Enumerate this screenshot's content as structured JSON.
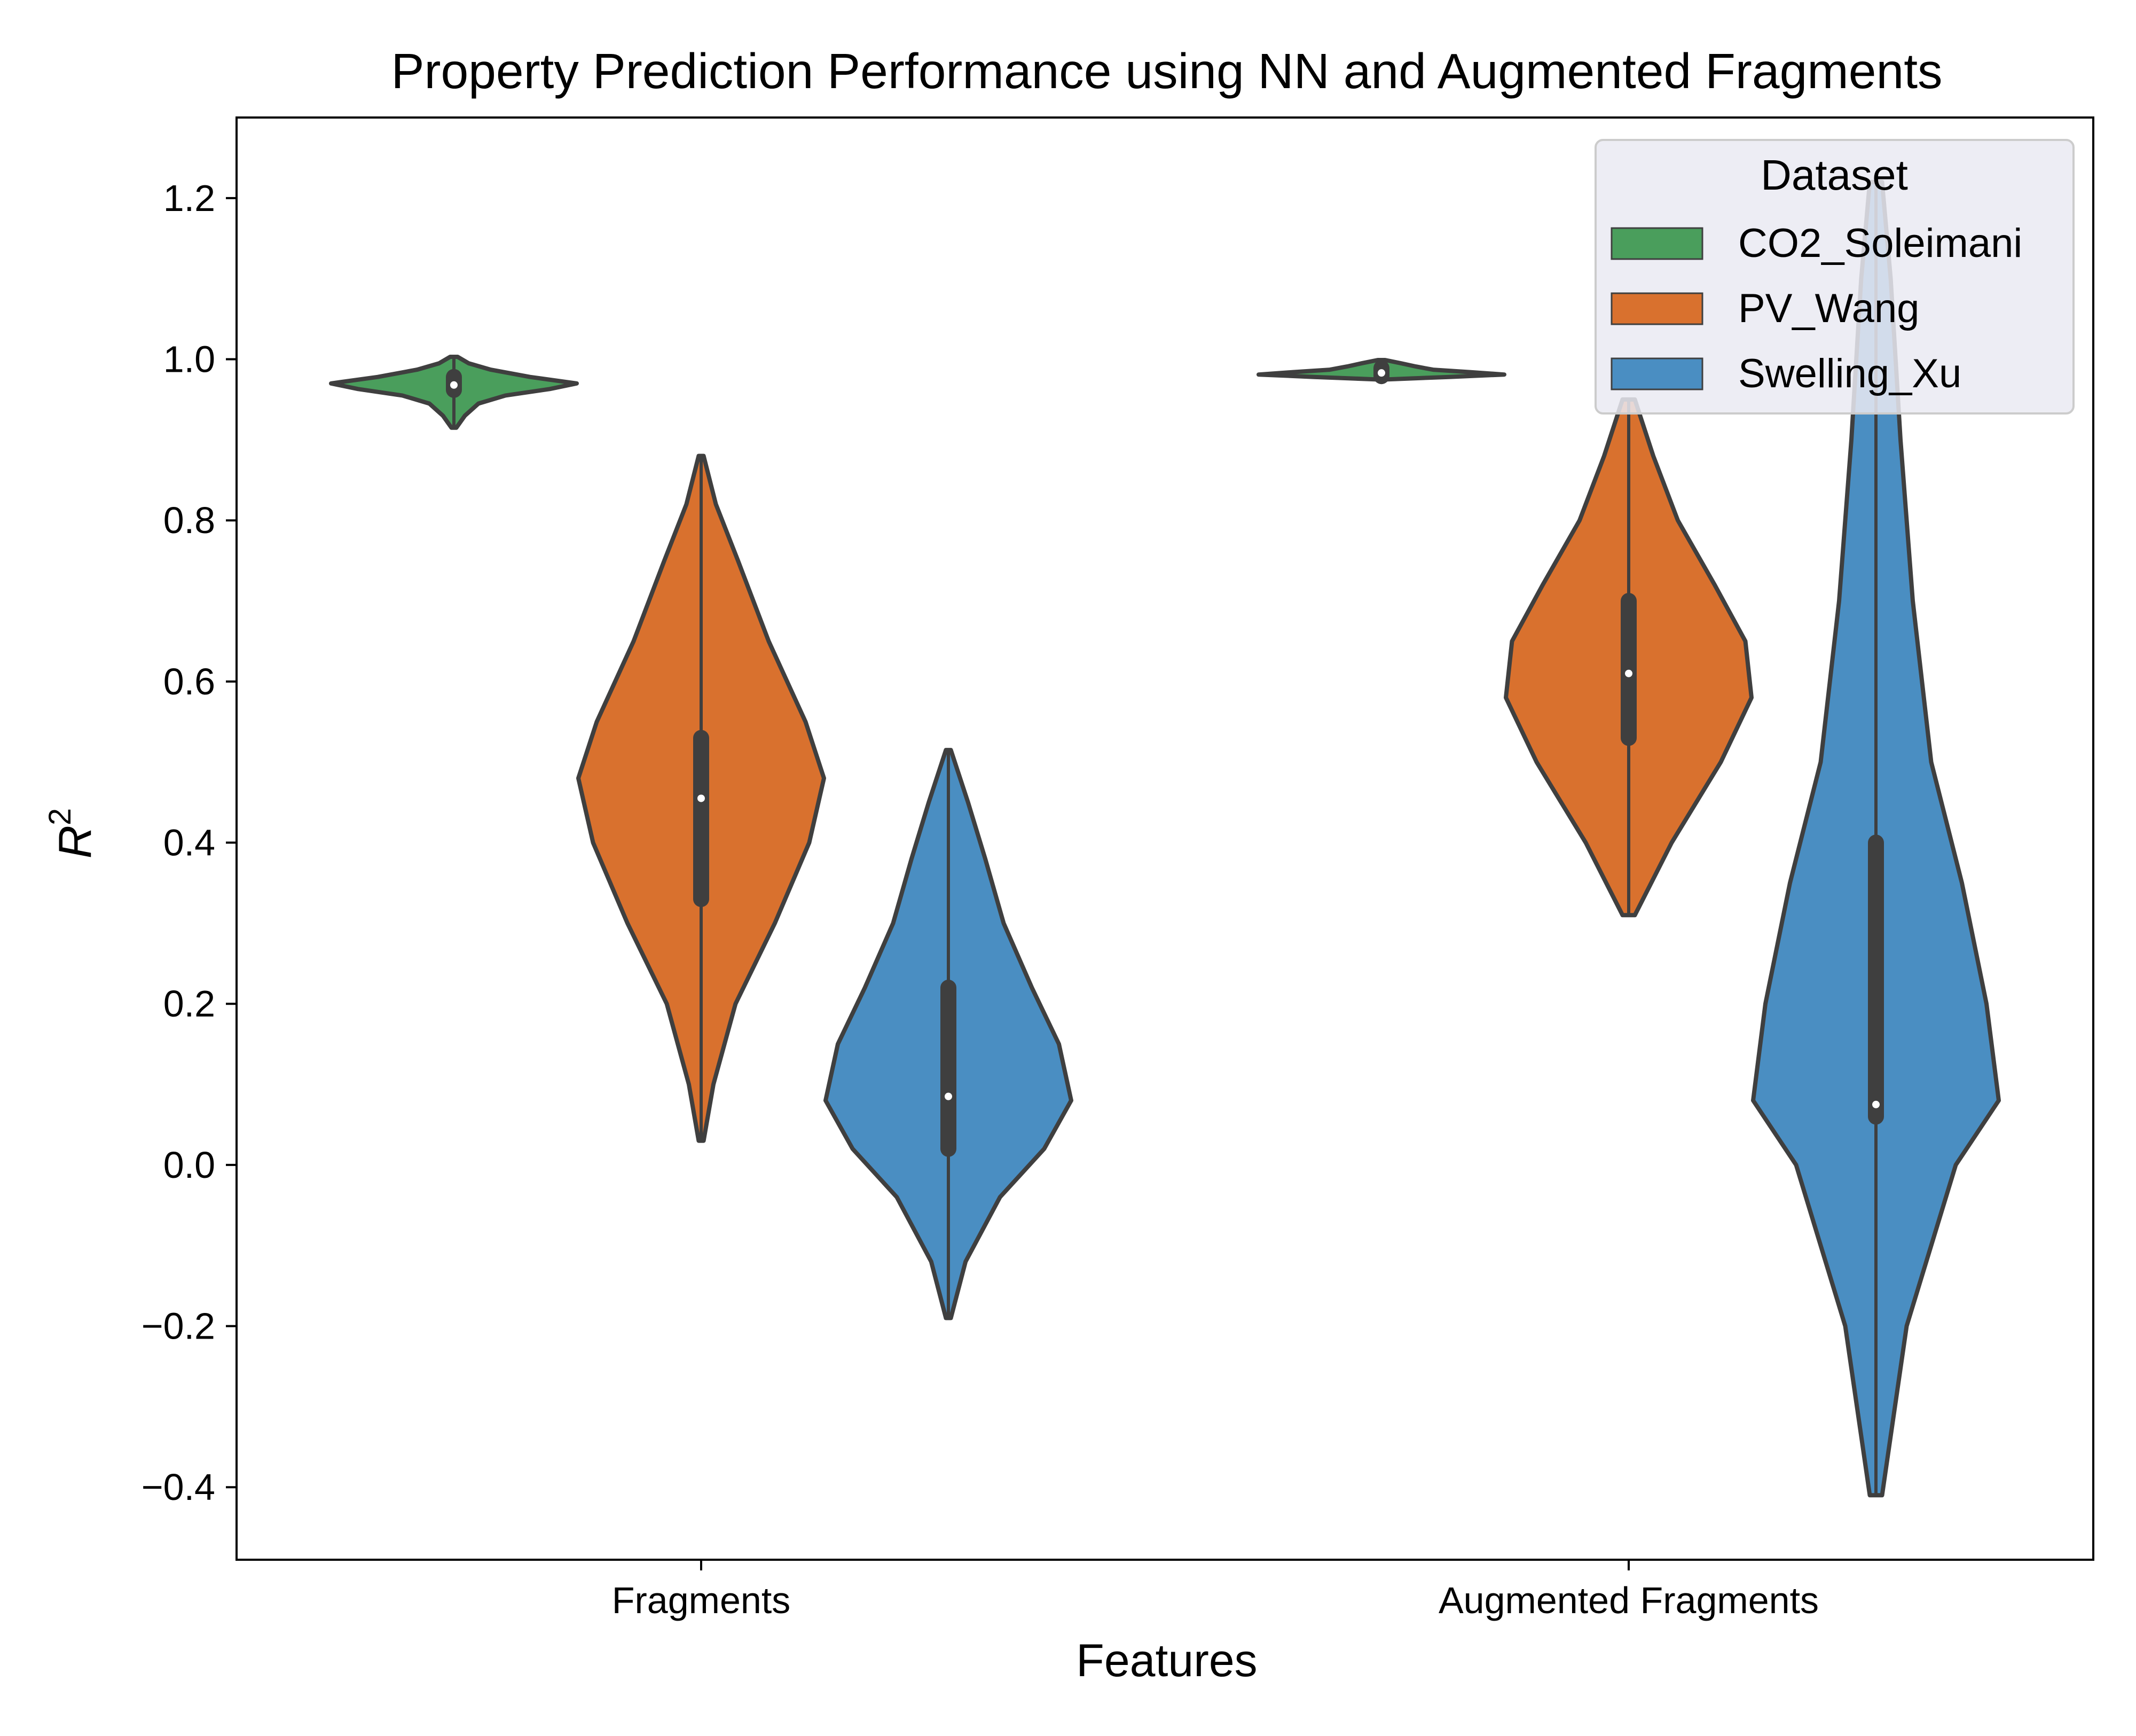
{
  "chart_data": {
    "type": "violin",
    "title": "Property Prediction Performance using NN and Augmented Fragments",
    "xlabel": "Features",
    "ylabel": "R",
    "ylabel_superscript": "2",
    "categories": [
      "Fragments",
      "Augmented Fragments"
    ],
    "ylim": [
      -0.49,
      1.3
    ],
    "yticks": [
      -0.4,
      -0.2,
      0.0,
      0.2,
      0.4,
      0.6,
      0.8,
      1.0,
      1.2
    ],
    "ytick_labels": [
      "−0.4",
      "−0.2",
      "0.0",
      "0.2",
      "0.4",
      "0.6",
      "0.8",
      "1.0",
      "1.2"
    ],
    "grid": false,
    "legend": {
      "title": "Dataset",
      "position": "top-right"
    },
    "series": [
      {
        "name": "CO2_Soleimani",
        "color": "#4a9e5c",
        "stats": [
          {
            "category": "Fragments",
            "min": 0.915,
            "q1": 0.962,
            "median": 0.968,
            "q3": 0.978,
            "max": 1.003,
            "density": [
              [
                0.915,
                0.02
              ],
              [
                0.93,
                0.09
              ],
              [
                0.945,
                0.2
              ],
              [
                0.955,
                0.42
              ],
              [
                0.963,
                0.78
              ],
              [
                0.97,
                1.0
              ],
              [
                0.978,
                0.62
              ],
              [
                0.987,
                0.3
              ],
              [
                0.995,
                0.12
              ],
              [
                1.003,
                0.03
              ]
            ]
          },
          {
            "category": "Augmented Fragments",
            "min": 0.975,
            "q1": 0.979,
            "median": 0.983,
            "q3": 0.989,
            "max": 0.999,
            "density": [
              [
                0.975,
                0.05
              ],
              [
                0.978,
                0.55
              ],
              [
                0.981,
                1.0
              ],
              [
                0.984,
                0.72
              ],
              [
                0.987,
                0.42
              ],
              [
                0.991,
                0.28
              ],
              [
                0.995,
                0.16
              ],
              [
                0.999,
                0.03
              ]
            ]
          }
        ]
      },
      {
        "name": "PV_Wang",
        "color": "#d9712e",
        "stats": [
          {
            "category": "Fragments",
            "min": 0.03,
            "q1": 0.33,
            "median": 0.455,
            "q3": 0.53,
            "max": 0.88,
            "density": [
              [
                0.03,
                0.02
              ],
              [
                0.1,
                0.1
              ],
              [
                0.2,
                0.28
              ],
              [
                0.3,
                0.6
              ],
              [
                0.4,
                0.88
              ],
              [
                0.48,
                1.0
              ],
              [
                0.55,
                0.85
              ],
              [
                0.65,
                0.55
              ],
              [
                0.75,
                0.3
              ],
              [
                0.82,
                0.12
              ],
              [
                0.88,
                0.02
              ]
            ]
          },
          {
            "category": "Augmented Fragments",
            "min": 0.31,
            "q1": 0.53,
            "median": 0.61,
            "q3": 0.7,
            "max": 0.95,
            "density": [
              [
                0.31,
                0.05
              ],
              [
                0.4,
                0.35
              ],
              [
                0.5,
                0.75
              ],
              [
                0.58,
                1.0
              ],
              [
                0.65,
                0.95
              ],
              [
                0.72,
                0.7
              ],
              [
                0.8,
                0.4
              ],
              [
                0.88,
                0.2
              ],
              [
                0.95,
                0.05
              ]
            ]
          }
        ]
      },
      {
        "name": "Swelling_Xu",
        "color": "#4a8ec2",
        "stats": [
          {
            "category": "Fragments",
            "min": -0.19,
            "q1": 0.02,
            "median": 0.085,
            "q3": 0.22,
            "max": 0.515,
            "density": [
              [
                -0.19,
                0.02
              ],
              [
                -0.12,
                0.14
              ],
              [
                -0.04,
                0.42
              ],
              [
                0.02,
                0.78
              ],
              [
                0.08,
                1.0
              ],
              [
                0.15,
                0.9
              ],
              [
                0.22,
                0.68
              ],
              [
                0.3,
                0.45
              ],
              [
                0.38,
                0.3
              ],
              [
                0.45,
                0.16
              ],
              [
                0.515,
                0.02
              ]
            ]
          },
          {
            "category": "Augmented Fragments",
            "min": -0.41,
            "q1": 0.06,
            "median": 0.075,
            "q3": 0.4,
            "max": 1.22,
            "density": [
              [
                -0.41,
                0.05
              ],
              [
                -0.2,
                0.25
              ],
              [
                0.0,
                0.65
              ],
              [
                0.08,
                1.0
              ],
              [
                0.2,
                0.9
              ],
              [
                0.35,
                0.7
              ],
              [
                0.5,
                0.45
              ],
              [
                0.7,
                0.3
              ],
              [
                0.9,
                0.2
              ],
              [
                1.1,
                0.12
              ],
              [
                1.22,
                0.05
              ]
            ]
          }
        ]
      }
    ]
  }
}
